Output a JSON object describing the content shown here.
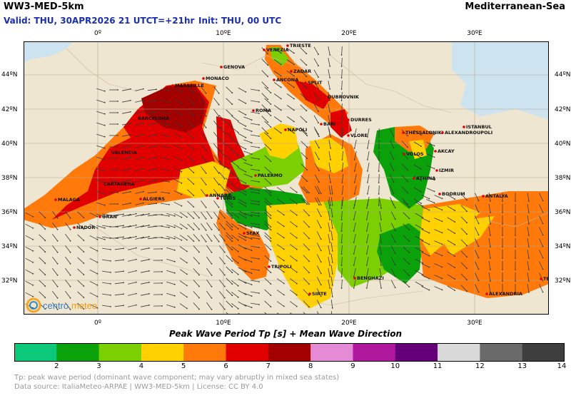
{
  "header": {
    "model": "WW3-MED-5km",
    "region": "Mediterranean-Sea",
    "valid": "Valid: THU, 30APR2026 21 UTC",
    "lead": "T=+21hr",
    "init": "Init: THU, 00 UTC"
  },
  "axes": {
    "lon_top": [
      "0º",
      "10ºE",
      "20ºE",
      "30ºE"
    ],
    "lon_bottom": [
      "0º",
      "10ºE",
      "20ºE",
      "30ºE"
    ],
    "lat_left": [
      "44ºN",
      "42ºN",
      "40ºN",
      "38ºN",
      "36ºN",
      "34ºN",
      "32ºN"
    ],
    "lat_right": [
      "44ºN",
      "42ºN",
      "40ºN",
      "38ºN",
      "36ºN",
      "34ºN",
      "32ºN"
    ]
  },
  "cities": [
    {
      "name": "TRIESTE"
    },
    {
      "name": "VENEZIA"
    },
    {
      "name": "GENOVA"
    },
    {
      "name": "ZADAR"
    },
    {
      "name": "MONACO"
    },
    {
      "name": "ANCONA"
    },
    {
      "name": "SPLIT"
    },
    {
      "name": "MARSEILLE"
    },
    {
      "name": "DUBROVNIK"
    },
    {
      "name": "ROMA"
    },
    {
      "name": "BARCELONA"
    },
    {
      "name": "DURRES"
    },
    {
      "name": "BARI"
    },
    {
      "name": "NAPOLI"
    },
    {
      "name": "VLORE"
    },
    {
      "name": "THESSALONIKI"
    },
    {
      "name": "ALEXANDROUPOLI"
    },
    {
      "name": "ISTANBUL"
    },
    {
      "name": "VALENCIA"
    },
    {
      "name": "VOLOS"
    },
    {
      "name": "AKCAY"
    },
    {
      "name": "IZMIR"
    },
    {
      "name": "PALERMO"
    },
    {
      "name": "ATHINA"
    },
    {
      "name": "CARTAGENA"
    },
    {
      "name": "BODRUM"
    },
    {
      "name": "ANTALYA"
    },
    {
      "name": "ANNABA"
    },
    {
      "name": "TUNIS"
    },
    {
      "name": "MALAGA"
    },
    {
      "name": "ALGIERS"
    },
    {
      "name": "ORAN"
    },
    {
      "name": "NADOR"
    },
    {
      "name": "SFAX"
    },
    {
      "name": "TRIPOLI"
    },
    {
      "name": "BENGHAZI"
    },
    {
      "name": "SIRTE"
    },
    {
      "name": "ALEXANDRIA"
    },
    {
      "name": "TEL AVIV"
    }
  ],
  "legend": {
    "title": "Peak Wave Period Tp [s]  +  Mean Wave Direction",
    "colors": [
      "#0cc97a",
      "#0aa10a",
      "#7ccf00",
      "#ffd100",
      "#ff7a0a",
      "#e00000",
      "#a30000",
      "#e58ad5",
      "#b0189e",
      "#650078",
      "#d9d9d9",
      "#6a6a6a",
      "#3e3e3e"
    ],
    "labels": [
      "2",
      "3",
      "4",
      "5",
      "6",
      "7",
      "8",
      "9",
      "10",
      "11",
      "12",
      "13",
      "14"
    ]
  },
  "footer": {
    "line1": "Tp: peak wave period (dominant wave component; may vary abruptly in mixed sea states)",
    "line2": "Data source: ItaliaMeteo-ARPAE | WW3-MED-5km | License: CC BY 4.0"
  },
  "logo": {
    "part1": "centro",
    "part2": "meteo"
  }
}
